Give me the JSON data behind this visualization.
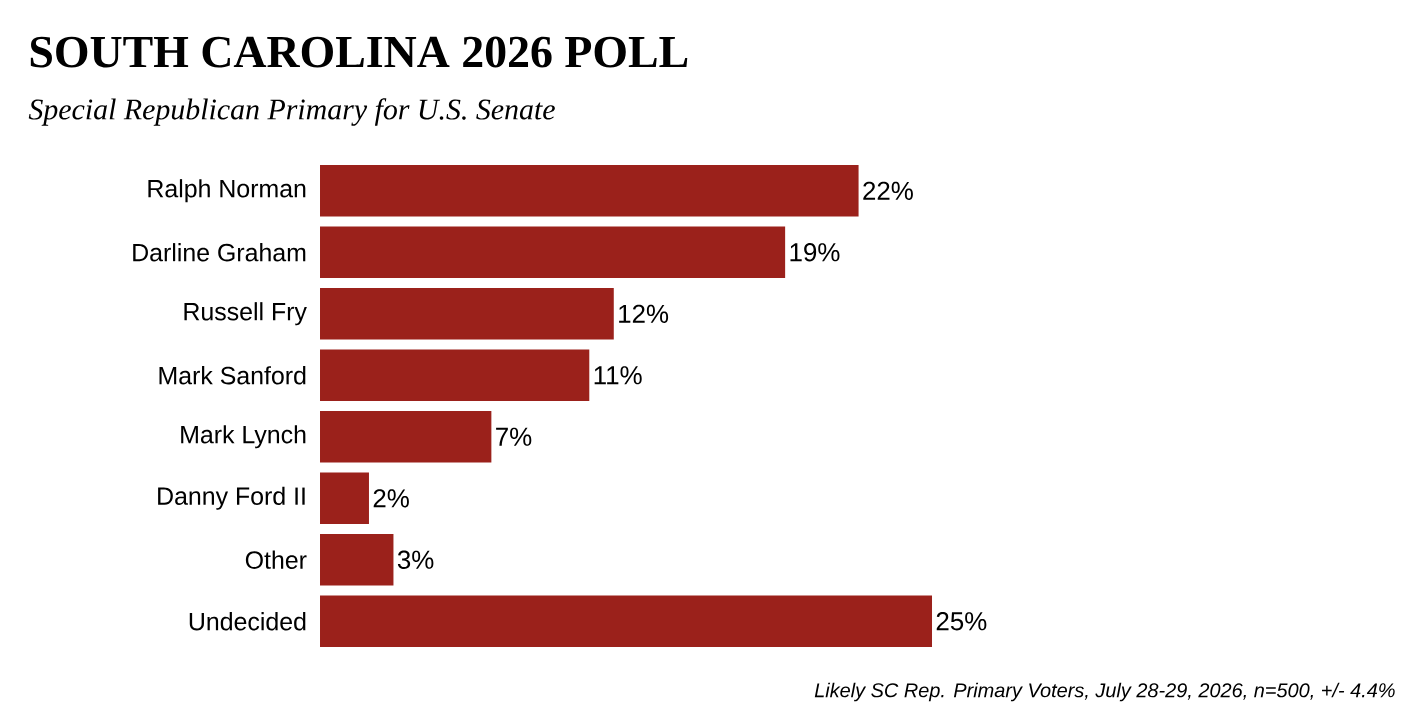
{
  "chart_data": {
    "type": "bar",
    "orientation": "horizontal",
    "title": "SOUTH CAROLINA 2026 POLL",
    "subtitle": "Special Republican Primary for U.S. Senate",
    "categories": [
      "Ralph Norman",
      "Darline Graham",
      "Russell Fry",
      "Mark Sanford",
      "Mark Lynch",
      "Danny Ford II",
      "Other",
      "Undecided"
    ],
    "values": [
      22,
      19,
      12,
      11,
      7,
      2,
      3,
      25
    ],
    "value_labels": [
      "22%",
      "19%",
      "12%",
      "11%",
      "7%",
      "2%",
      "3%",
      "25%"
    ],
    "color": "#9b211b",
    "tick_labels": "y",
    "annotations": [
      "Likely SC Rep. Primary Voters, July 28-29, 2026, n=500, +/- 4.4%"
    ]
  }
}
